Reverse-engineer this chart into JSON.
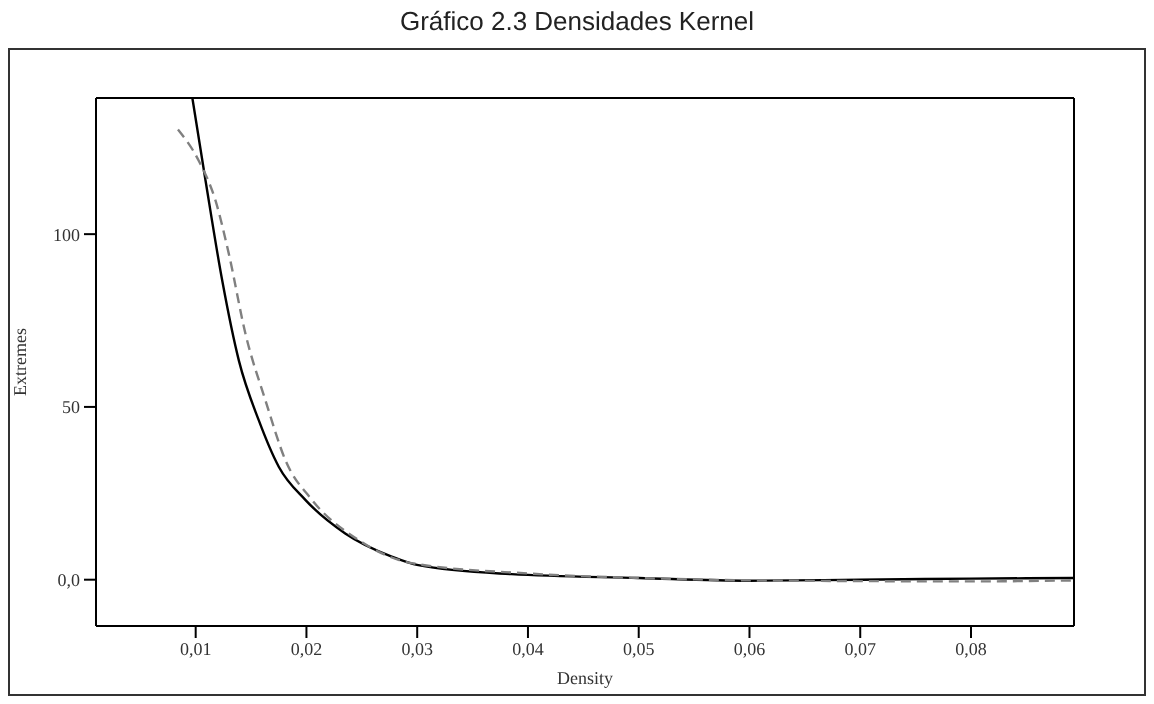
{
  "chart_data": {
    "type": "line",
    "title": "Gráfico 2.3 Densidades Kernel",
    "xlabel": "Density",
    "ylabel": "Extremes",
    "xlim": [
      0.001,
      0.0893
    ],
    "ylim": [
      -13.4,
      139.4
    ],
    "xticks": [
      {
        "value": 0.01,
        "label": "0,01"
      },
      {
        "value": 0.02,
        "label": "0,02"
      },
      {
        "value": 0.03,
        "label": "0,03"
      },
      {
        "value": 0.04,
        "label": "0,04"
      },
      {
        "value": 0.05,
        "label": "0,05"
      },
      {
        "value": 0.06,
        "label": "0,06"
      },
      {
        "value": 0.07,
        "label": "0,07"
      },
      {
        "value": 0.08,
        "label": "0,08"
      }
    ],
    "yticks": [
      {
        "value": 0,
        "label": "0,0"
      },
      50,
      100
    ],
    "grid": false,
    "legend": false,
    "marker": "none",
    "series": [
      {
        "color": "#000000",
        "line_style": "solid",
        "x": [
          0.0097,
          0.0109,
          0.0124,
          0.0139,
          0.0157,
          0.0175,
          0.0199,
          0.0235,
          0.0277,
          0.0301,
          0.0385,
          0.05,
          0.06,
          0.07,
          0.08,
          0.0893
        ],
        "values": [
          139.4,
          115.3,
          86.5,
          63.4,
          46.1,
          32.7,
          23.1,
          13.4,
          6.7,
          4.2,
          1.6,
          0.5,
          -0.3,
          0,
          0.3,
          0.5
        ]
      },
      {
        "color": "#808080",
        "line_style": "dashed",
        "x": [
          0.0084,
          0.0103,
          0.0118,
          0.013,
          0.0145,
          0.0163,
          0.0181,
          0.0205,
          0.0247,
          0.0295,
          0.04,
          0.05,
          0.06,
          0.07,
          0.08,
          0.0893
        ],
        "values": [
          130.3,
          121.1,
          109.6,
          94.2,
          71.1,
          51.9,
          34.6,
          23.1,
          11.5,
          4.8,
          1.8,
          0.5,
          -0.2,
          -0.4,
          -0.5,
          -0.2
        ]
      }
    ]
  }
}
